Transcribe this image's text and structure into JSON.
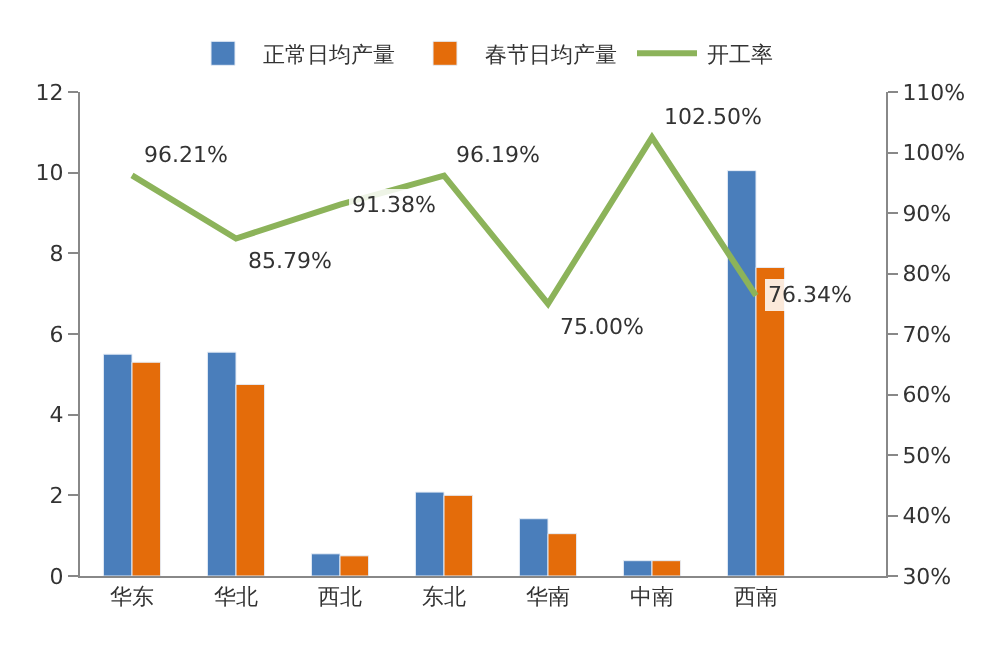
{
  "chart_data": {
    "type": "bar",
    "categories": [
      "华东",
      "华北",
      "西北",
      "东北",
      "华南",
      "中南",
      "西南"
    ],
    "series": [
      {
        "name": "正常日均产量",
        "color": "#4a7ebb",
        "values": [
          5.5,
          5.55,
          0.55,
          2.08,
          1.42,
          0.38,
          10.05
        ]
      },
      {
        "name": "春节日均产量",
        "color": "#e46c0a",
        "values": [
          5.3,
          4.75,
          0.5,
          2.0,
          1.05,
          0.38,
          7.65
        ]
      },
      {
        "name": "开工率",
        "type": "line",
        "axis": "y2",
        "color": "#8cb35a",
        "values": [
          96.21,
          85.79,
          91.38,
          96.19,
          75.0,
          102.5,
          76.34
        ],
        "value_labels": [
          "96.21%",
          "85.79%",
          "91.38%",
          "96.19%",
          "75.00%",
          "102.50%",
          "76.34%"
        ]
      }
    ],
    "ylim": [
      0,
      12
    ],
    "yticks": [
      0,
      2,
      4,
      6,
      8,
      10,
      12
    ],
    "y2lim": [
      30,
      110
    ],
    "y2ticks": [
      {
        "value": 30,
        "label": "30%"
      },
      {
        "value": 40,
        "label": "40%"
      },
      {
        "value": 50,
        "label": "50%"
      },
      {
        "value": 60,
        "label": "60%"
      },
      {
        "value": 70,
        "label": "70%"
      },
      {
        "value": 80,
        "label": "80%"
      },
      {
        "value": 90,
        "label": "90%"
      },
      {
        "value": 100,
        "label": "100%"
      },
      {
        "value": 110,
        "label": "110%"
      }
    ],
    "legend": "top",
    "marker": "none"
  }
}
